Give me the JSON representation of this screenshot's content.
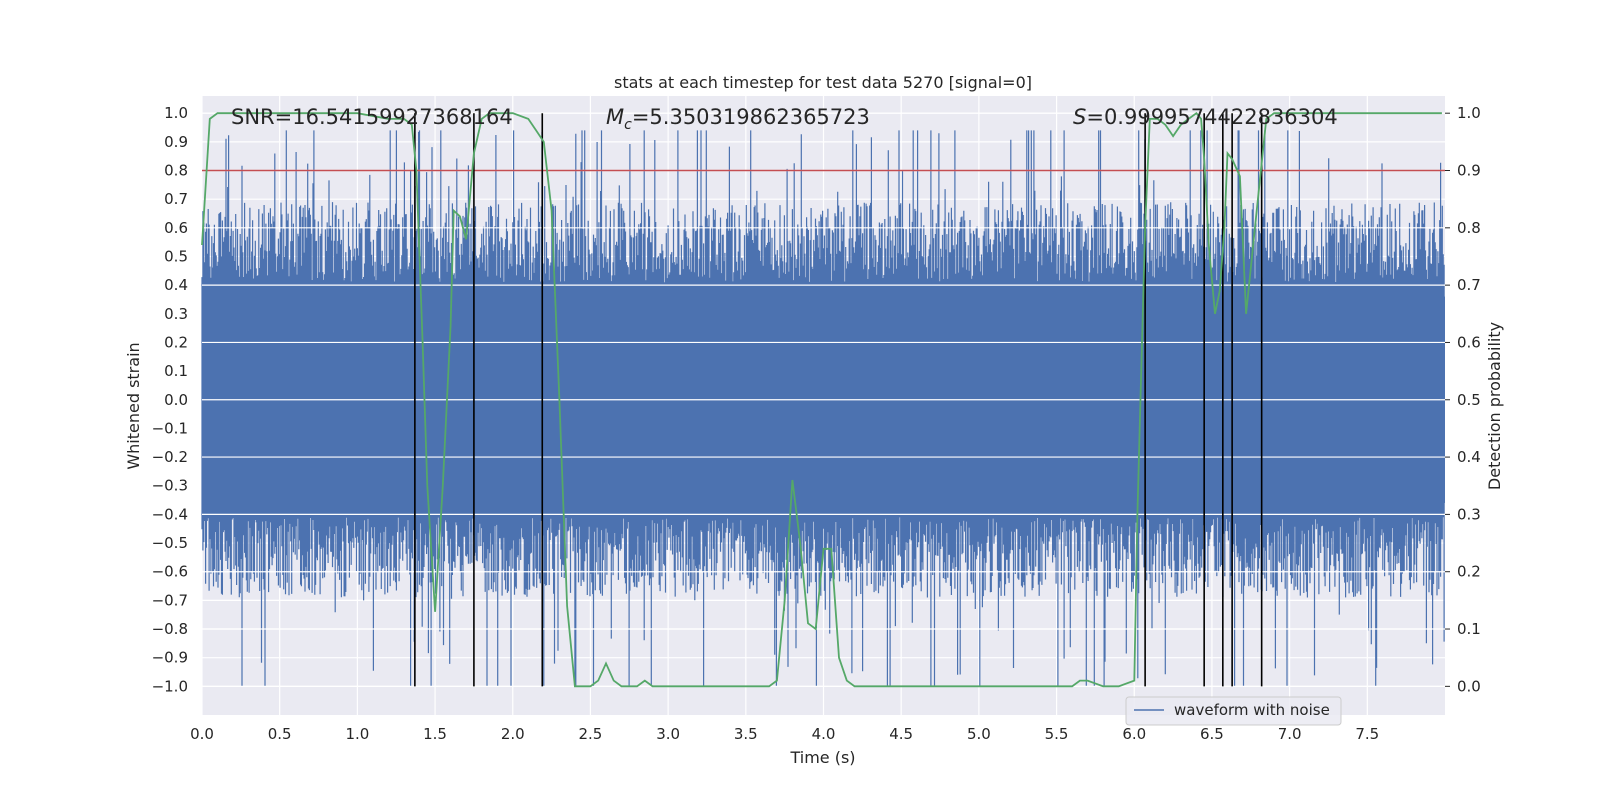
{
  "chart_data": {
    "type": "line",
    "title": "stats at each timestep for test data 5270 [signal=0]",
    "xlabel": "Time (s)",
    "ylabel": "Whitened strain",
    "ylabel2": "Detection probability",
    "xlim": [
      0,
      8
    ],
    "ylim": [
      -1.1,
      1.06
    ],
    "ylim2": [
      -0.05,
      1.03
    ],
    "grid": true,
    "x_ticks": [
      "0.0",
      "0.5",
      "1.0",
      "1.5",
      "2.0",
      "2.5",
      "3.0",
      "3.5",
      "4.0",
      "4.5",
      "5.0",
      "5.5",
      "6.0",
      "6.5",
      "7.0",
      "7.5"
    ],
    "y_ticks": [
      "1.0",
      "0.9",
      "0.8",
      "0.7",
      "0.6",
      "0.5",
      "0.4",
      "0.3",
      "0.2",
      "0.1",
      "0.0",
      "-0.1",
      "-0.2",
      "-0.3",
      "-0.4",
      "-0.5",
      "-0.6",
      "-0.7",
      "-0.8",
      "-0.9",
      "-1.0"
    ],
    "y2_ticks": [
      "1.0",
      "0.9",
      "0.8",
      "0.7",
      "0.6",
      "0.5",
      "0.4",
      "0.3",
      "0.2",
      "0.1",
      "0.0"
    ],
    "annotations": {
      "snr": "SNR=16.54159927368164",
      "mc_symbol": "M",
      "mc_subscript": "c",
      "mc_value": "=5.350319862365723",
      "s_symbol": "S",
      "s_value": "=0.9999574422836304"
    },
    "legend": {
      "label": "waveform with noise",
      "position": "lower-right"
    },
    "threshold": 0.9,
    "threshold_color": "#c44e52",
    "series": [
      {
        "name": "waveform with noise",
        "color": "#4c72b0",
        "kind": "noise",
        "core_band": 0.36,
        "peak_range": [
          -1.0,
          0.94
        ]
      },
      {
        "color": "#55a868",
        "kind": "probability",
        "x": [
          0.0,
          0.05,
          0.1,
          0.15,
          0.2,
          0.3,
          0.5,
          0.8,
          1.0,
          1.2,
          1.3,
          1.35,
          1.38,
          1.42,
          1.45,
          1.5,
          1.55,
          1.6,
          1.62,
          1.66,
          1.7,
          1.75,
          1.8,
          1.85,
          1.9,
          2.0,
          2.1,
          2.15,
          2.2,
          2.25,
          2.3,
          2.35,
          2.4,
          2.45,
          2.5,
          2.55,
          2.6,
          2.65,
          2.7,
          2.75,
          2.8,
          2.85,
          2.9,
          3.0,
          3.1,
          3.2,
          3.3,
          3.4,
          3.5,
          3.6,
          3.65,
          3.7,
          3.75,
          3.8,
          3.85,
          3.9,
          3.95,
          4.0,
          4.05,
          4.1,
          4.15,
          4.2,
          4.3,
          4.5,
          4.8,
          5.0,
          5.2,
          5.4,
          5.5,
          5.6,
          5.65,
          5.7,
          5.8,
          5.9,
          6.0,
          6.02,
          6.05,
          6.07,
          6.1,
          6.15,
          6.2,
          6.25,
          6.3,
          6.35,
          6.4,
          6.43,
          6.45,
          6.48,
          6.52,
          6.55,
          6.58,
          6.6,
          6.63,
          6.68,
          6.72,
          6.75,
          6.8,
          6.85,
          6.9,
          6.95,
          7.0,
          7.2,
          7.5,
          7.8,
          7.98
        ],
        "y": [
          0.77,
          0.99,
          1.0,
          1.0,
          1.0,
          1.0,
          1.0,
          1.0,
          1.0,
          0.99,
          0.99,
          0.98,
          0.9,
          0.6,
          0.35,
          0.13,
          0.35,
          0.63,
          0.83,
          0.82,
          0.78,
          0.93,
          0.99,
          1.0,
          1.0,
          1.0,
          0.99,
          0.97,
          0.95,
          0.83,
          0.5,
          0.14,
          0.0,
          0.0,
          0.0,
          0.01,
          0.04,
          0.01,
          0.0,
          0.0,
          0.0,
          0.01,
          0.0,
          0.0,
          0.0,
          0.0,
          0.0,
          0.0,
          0.0,
          0.0,
          0.0,
          0.01,
          0.15,
          0.36,
          0.25,
          0.11,
          0.1,
          0.24,
          0.24,
          0.05,
          0.01,
          0.0,
          0.0,
          0.0,
          0.0,
          0.0,
          0.0,
          0.0,
          0.0,
          0.0,
          0.01,
          0.01,
          0.0,
          0.0,
          0.01,
          0.3,
          0.6,
          0.8,
          0.99,
          0.99,
          0.98,
          0.96,
          0.98,
          0.99,
          1.0,
          0.99,
          0.92,
          0.77,
          0.65,
          0.69,
          0.8,
          0.93,
          0.92,
          0.89,
          0.65,
          0.73,
          0.86,
          0.99,
          1.0,
          1.0,
          1.0,
          1.0,
          1.0,
          1.0,
          1.0
        ]
      }
    ],
    "vlines": [
      1.37,
      1.75,
      2.19,
      6.07,
      6.45,
      6.57,
      6.63,
      6.82
    ]
  }
}
